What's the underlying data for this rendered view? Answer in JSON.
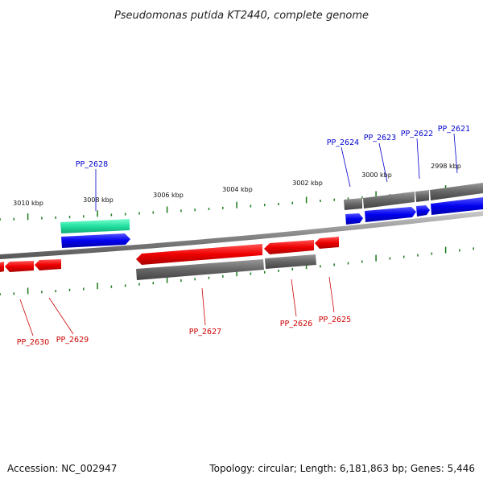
{
  "header": {
    "title": "Pseudomonas putida KT2440, complete genome"
  },
  "footer": {
    "accession": "Accession: NC_002947",
    "summary": "Topology: circular; Length: 6,181,863 bp; Genes: 5,446"
  },
  "ruler": {
    "labels": [
      "3010 kbp",
      "3008 kbp",
      "3006 kbp",
      "3004 kbp",
      "3002 kbp",
      "3000 kbp",
      "2998 kbp"
    ]
  },
  "genes": {
    "forward_labels": [
      "PP_2628",
      "PP_2624",
      "PP_2623",
      "PP_2622",
      "PP_2621"
    ],
    "reverse_labels": [
      "PP_2630",
      "PP_2629",
      "PP_2627",
      "PP_2626",
      "PP_2625"
    ]
  },
  "colors": {
    "forward_cds": "#0000ee",
    "reverse_cds": "#ee0000",
    "gene_track": "#666666",
    "rna": "#22e0a0",
    "ticks": "#1a7a1a",
    "backbone": "#888888"
  }
}
